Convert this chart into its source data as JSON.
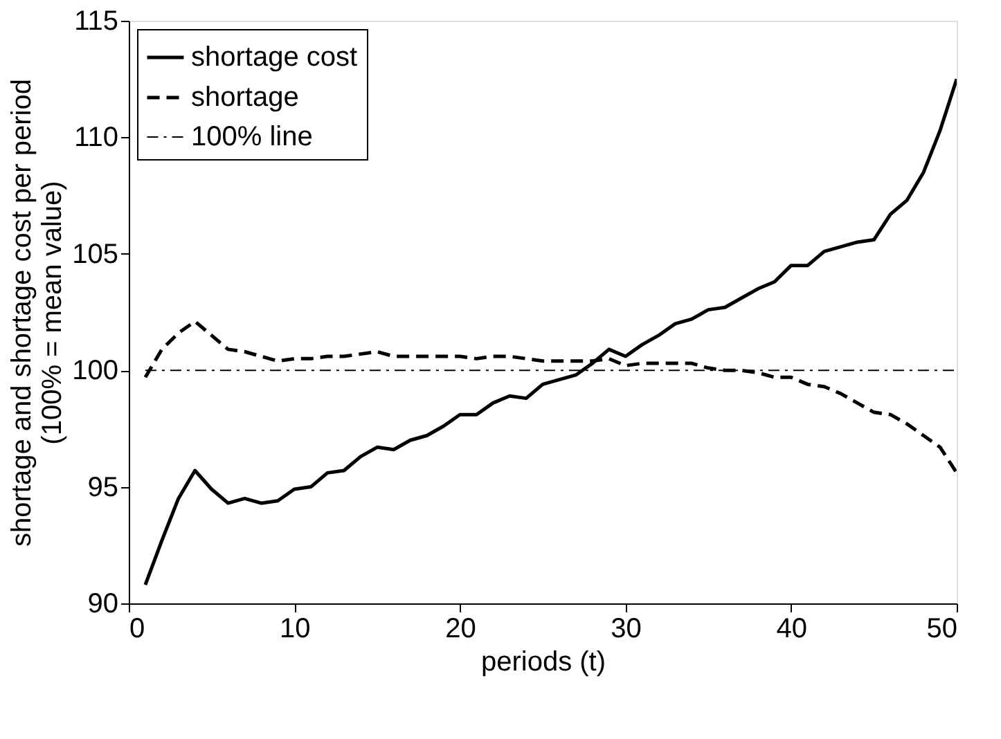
{
  "chart_data": {
    "type": "line",
    "xlabel": "periods (t)",
    "ylabel": "shortage and shortage cost per period\n(100% = mean value)",
    "xlim": [
      0,
      50
    ],
    "xticks": [
      0,
      10,
      20,
      30,
      40,
      50
    ],
    "ylim": [
      90,
      115
    ],
    "yticks": [
      90,
      95,
      100,
      105,
      110,
      115
    ],
    "grid": false,
    "legend": "top left",
    "series": [
      {
        "name": "shortage cost",
        "color": "#000000",
        "line_style": "solid",
        "x": [
          1,
          2,
          3,
          4,
          5,
          6,
          7,
          8,
          9,
          10,
          11,
          12,
          13,
          14,
          15,
          16,
          17,
          18,
          19,
          20,
          21,
          22,
          23,
          24,
          25,
          26,
          27,
          28,
          29,
          30,
          31,
          32,
          33,
          34,
          35,
          36,
          37,
          38,
          39,
          40,
          41,
          42,
          43,
          44,
          45,
          46,
          47,
          48,
          49,
          50
        ],
        "values": [
          90.8,
          92.7,
          94.5,
          95.7,
          94.9,
          94.3,
          94.5,
          94.3,
          94.4,
          94.9,
          95.0,
          95.6,
          95.7,
          96.3,
          96.7,
          96.6,
          97.0,
          97.2,
          97.6,
          98.1,
          98.1,
          98.6,
          98.9,
          98.8,
          99.4,
          99.6,
          99.8,
          100.3,
          100.9,
          100.6,
          101.1,
          101.5,
          102.0,
          102.2,
          102.6,
          102.7,
          103.1,
          103.5,
          103.8,
          104.5,
          104.5,
          105.1,
          105.3,
          105.5,
          105.6,
          106.7,
          107.3,
          108.5,
          110.3,
          112.5
        ]
      },
      {
        "name": "shortage",
        "color": "#000000",
        "line_style": "dashed",
        "x": [
          1,
          2,
          3,
          4,
          5,
          6,
          7,
          8,
          9,
          10,
          11,
          12,
          13,
          14,
          15,
          16,
          17,
          18,
          19,
          20,
          21,
          22,
          23,
          24,
          25,
          26,
          27,
          28,
          29,
          30,
          31,
          32,
          33,
          34,
          35,
          36,
          37,
          38,
          39,
          40,
          41,
          42,
          43,
          44,
          45,
          46,
          47,
          48,
          49,
          50
        ],
        "values": [
          99.7,
          100.9,
          101.6,
          102.1,
          101.5,
          100.9,
          100.8,
          100.6,
          100.4,
          100.5,
          100.5,
          100.6,
          100.6,
          100.7,
          100.8,
          100.6,
          100.6,
          100.6,
          100.6,
          100.6,
          100.5,
          100.6,
          100.6,
          100.5,
          100.4,
          100.4,
          100.4,
          100.4,
          100.5,
          100.2,
          100.3,
          100.3,
          100.3,
          100.3,
          100.1,
          100.0,
          100.0,
          99.9,
          99.7,
          99.7,
          99.4,
          99.3,
          99.0,
          98.6,
          98.2,
          98.1,
          97.7,
          97.2,
          96.7,
          95.6
        ]
      },
      {
        "name": "100% line",
        "color": "#000000",
        "line_style": "dashdot",
        "x": [
          1,
          50
        ],
        "values": [
          100,
          100
        ]
      }
    ]
  }
}
